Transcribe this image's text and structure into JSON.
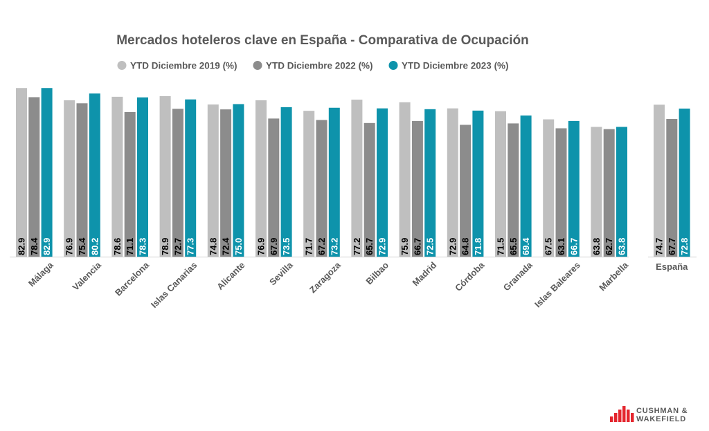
{
  "chart_data": {
    "type": "bar",
    "title": "Mercados hoteleros clave en España - Comparativa de Ocupación",
    "categories": [
      "Málaga",
      "Valencia",
      "Barcelona",
      "Islas Canarias",
      "Alicante",
      "Sevilla",
      "Zaragoza",
      "Bilbao",
      "Madrid",
      "Córdoba",
      "Granada",
      "Islas Baleares",
      "Marbella",
      "España"
    ],
    "series": [
      {
        "name": "YTD Diciembre 2019 (%)",
        "color": "#bfbfbf",
        "values": [
          82.9,
          76.9,
          78.6,
          78.9,
          74.8,
          76.9,
          71.7,
          77.2,
          75.9,
          72.9,
          71.5,
          67.5,
          63.8,
          74.7
        ]
      },
      {
        "name": "YTD Diciembre 2022 (%)",
        "color": "#8c8c8c",
        "values": [
          78.4,
          75.4,
          71.1,
          72.7,
          72.4,
          67.9,
          67.2,
          65.7,
          66.7,
          64.8,
          65.5,
          63.1,
          62.7,
          67.7
        ]
      },
      {
        "name": "YTD Diciembre 2023 (%)",
        "color": "#0e93ab",
        "values": [
          82.9,
          80.2,
          78.3,
          77.3,
          75.0,
          73.5,
          73.2,
          72.9,
          72.5,
          71.8,
          69.4,
          66.7,
          63.8,
          72.8
        ]
      }
    ],
    "xlabel": "",
    "ylabel": "",
    "ylim": [
      0,
      84
    ],
    "legend_position": "top-center",
    "grid": false,
    "data_labels": true,
    "text_color": "#595959"
  },
  "brand": {
    "line1": "CUSHMAN &",
    "line2": "WAKEFIELD",
    "color": "#e4262e"
  }
}
